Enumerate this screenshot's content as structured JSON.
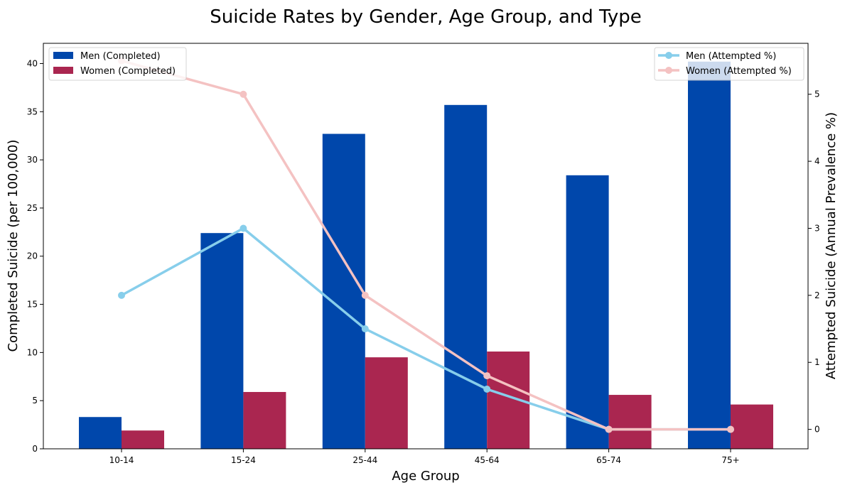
{
  "chart_data": {
    "type": "bar",
    "title": "Suicide Rates by Gender, Age Group, and Type",
    "xlabel": "Age Group",
    "ylabel": "Completed Suicide (per 100,000)",
    "y2label": "Attempted Suicide (Annual Prevalence %)",
    "categories": [
      "10-14",
      "15-24",
      "25-44",
      "45-64",
      "65-74",
      "75+"
    ],
    "ylim": [
      0,
      42.1
    ],
    "y2lim": [
      -0.29,
      5.76
    ],
    "yticks": [
      0,
      5,
      10,
      15,
      20,
      25,
      30,
      35,
      40
    ],
    "y2ticks": [
      0,
      1,
      2,
      3,
      4,
      5
    ],
    "bar_series": [
      {
        "name": "Men (Completed)",
        "color": "#0047AB",
        "values": [
          3.3,
          22.4,
          32.7,
          35.7,
          28.4,
          40.2
        ]
      },
      {
        "name": "Women (Completed)",
        "color": "#AA2650",
        "values": [
          1.9,
          5.9,
          9.5,
          10.1,
          5.6,
          4.6
        ]
      }
    ],
    "line_series": [
      {
        "name": "Men (Attempted %)",
        "color": "#87CEEB",
        "values": [
          2,
          3,
          1.5,
          0.6,
          0,
          0
        ]
      },
      {
        "name": "Women (Attempted %)",
        "color": "#F4C2C2",
        "values": [
          5.5,
          5,
          2,
          0.8,
          0,
          0
        ]
      }
    ],
    "legend": [
      "top-left",
      "top-right"
    ],
    "grid": false
  }
}
